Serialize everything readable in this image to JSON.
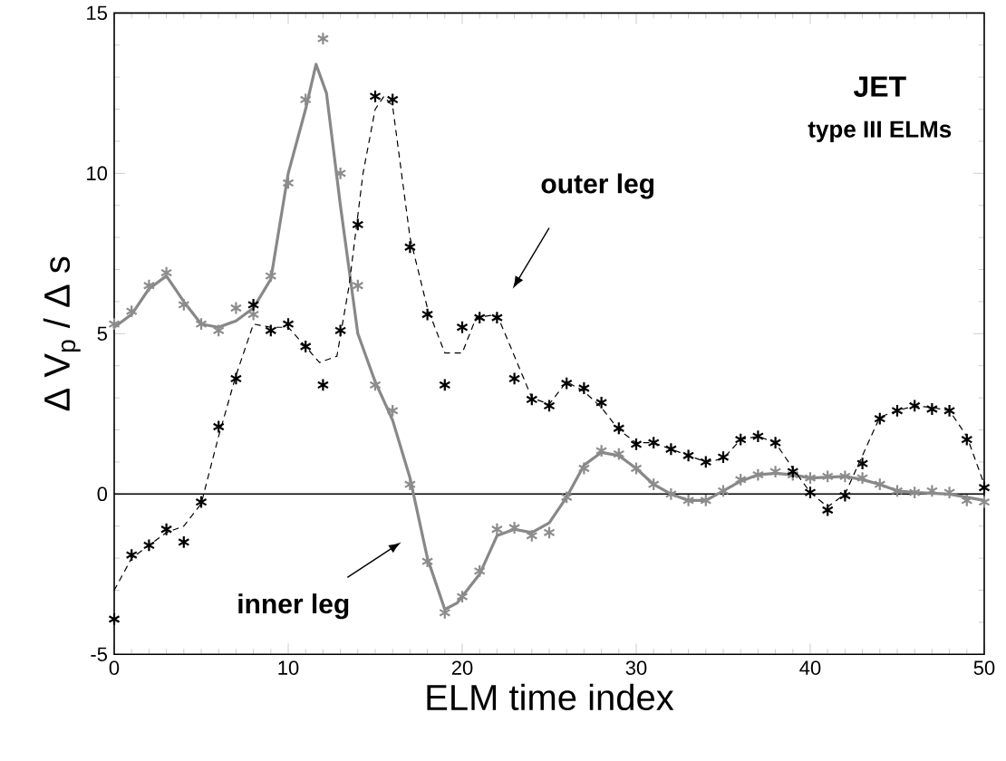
{
  "chart_data": {
    "type": "scatter",
    "title": "JET",
    "subtitle": "type III ELMs",
    "xlabel": "ELM time index",
    "ylabel": "Δ V$_{p}$ / Δ s",
    "xlim": [
      0,
      50
    ],
    "ylim": [
      -5,
      15
    ],
    "xticks": [
      0,
      10,
      20,
      30,
      40,
      50
    ],
    "yticks": [
      -5,
      0,
      5,
      10,
      15
    ],
    "grid": false,
    "ref_lines": [
      {
        "axis": "y",
        "value": 0,
        "color": "#000000"
      }
    ],
    "annotations": [
      "outer leg",
      "inner leg"
    ],
    "series": [
      {
        "type": "line",
        "color": "#888888",
        "line_style": "solid",
        "marker": "none",
        "x": [
          0,
          1,
          2,
          3,
          4,
          5,
          6,
          7,
          8,
          9,
          10,
          11,
          11.6,
          12.2,
          13,
          14,
          15,
          16,
          17,
          18,
          19,
          19.7,
          21,
          22,
          23,
          24,
          25,
          26,
          27,
          28,
          29,
          30,
          31,
          32,
          33,
          34,
          35,
          36,
          37,
          38,
          39,
          40,
          42,
          43,
          44,
          45,
          46,
          48,
          50
        ],
        "values": [
          5.2,
          5.6,
          6.4,
          6.8,
          6.0,
          5.3,
          5.2,
          5.4,
          5.8,
          6.7,
          10.0,
          12.0,
          13.4,
          12.5,
          9.0,
          5.0,
          3.5,
          2.3,
          0.5,
          -2.0,
          -3.6,
          -3.4,
          -2.5,
          -1.3,
          -1.1,
          -1.2,
          -0.9,
          -0.1,
          0.9,
          1.3,
          1.2,
          0.8,
          0.3,
          0.0,
          -0.2,
          -0.2,
          0.1,
          0.4,
          0.6,
          0.65,
          0.6,
          0.5,
          0.55,
          0.45,
          0.3,
          0.1,
          0.05,
          0.0,
          -0.2
        ]
      },
      {
        "type": "line",
        "color": "#000000",
        "line_style": "dashed",
        "marker": "none",
        "x": [
          0,
          1,
          2,
          3,
          4,
          5,
          6,
          7,
          8,
          9,
          10,
          11,
          11.8,
          12.8,
          13.5,
          14.3,
          15,
          15.5,
          16,
          17,
          18,
          19,
          20,
          20.8,
          22,
          23,
          24,
          25,
          26,
          27,
          28,
          29,
          30,
          31,
          32,
          33,
          34,
          35,
          36,
          37,
          38,
          39,
          40,
          41,
          42,
          43,
          44,
          45,
          46,
          47,
          48,
          49,
          50
        ],
        "values": [
          -3.0,
          -2.0,
          -1.6,
          -1.2,
          -1.0,
          -0.3,
          1.8,
          3.7,
          5.3,
          5.2,
          5.2,
          4.6,
          4.1,
          4.3,
          6.5,
          10.0,
          12.0,
          12.4,
          12.1,
          8.0,
          5.8,
          4.4,
          4.4,
          5.5,
          5.6,
          4.3,
          3.0,
          2.8,
          3.5,
          3.2,
          2.7,
          2.0,
          1.6,
          1.6,
          1.4,
          1.2,
          1.0,
          1.1,
          1.7,
          1.8,
          1.6,
          0.8,
          0.05,
          -0.4,
          0.0,
          1.2,
          2.4,
          2.6,
          2.75,
          2.7,
          2.6,
          1.8,
          0.3
        ]
      },
      {
        "color": "#8c8c8c",
        "marker": "cross",
        "x": [
          0,
          1,
          2,
          3,
          4,
          5,
          6,
          7,
          8,
          9,
          10,
          11,
          12,
          13,
          14,
          15,
          16,
          17,
          18,
          19,
          20,
          21,
          22,
          23,
          24,
          25,
          26,
          27,
          28,
          29,
          30,
          31,
          32,
          33,
          34,
          35,
          36,
          37,
          38,
          39,
          40,
          41,
          42,
          43,
          44,
          45,
          46,
          47,
          48,
          49,
          50
        ],
        "values": [
          5.3,
          5.7,
          6.5,
          6.9,
          5.9,
          5.3,
          5.1,
          5.8,
          5.6,
          6.8,
          9.7,
          12.3,
          14.2,
          10.0,
          6.5,
          3.4,
          2.6,
          0.3,
          -2.1,
          -3.7,
          -3.2,
          -2.4,
          -1.1,
          -1.05,
          -1.3,
          -1.2,
          -0.1,
          0.8,
          1.35,
          1.25,
          0.8,
          0.3,
          0.0,
          -0.2,
          -0.2,
          0.1,
          0.45,
          0.6,
          0.7,
          0.6,
          0.5,
          0.55,
          0.55,
          0.5,
          0.3,
          0.1,
          0.05,
          0.1,
          0.05,
          -0.2,
          -0.25
        ]
      },
      {
        "color": "#000000",
        "marker": "cross",
        "x": [
          0,
          1,
          2,
          3,
          4,
          5,
          6,
          7,
          8,
          9,
          10,
          11,
          12,
          13,
          14,
          15,
          16,
          17,
          18,
          19,
          20,
          21,
          22,
          23,
          24,
          25,
          26,
          27,
          28,
          29,
          30,
          31,
          32,
          33,
          34,
          35,
          36,
          37,
          38,
          39,
          40,
          41,
          42,
          43,
          44,
          45,
          46,
          47,
          48,
          49,
          50
        ],
        "values": [
          -3.9,
          -1.9,
          -1.6,
          -1.1,
          -1.5,
          -0.25,
          2.1,
          3.6,
          5.9,
          5.1,
          5.3,
          4.6,
          3.4,
          5.1,
          8.4,
          12.4,
          12.3,
          7.7,
          5.6,
          3.4,
          5.2,
          5.5,
          5.5,
          3.6,
          2.95,
          2.75,
          3.45,
          3.3,
          2.85,
          2.05,
          1.55,
          1.6,
          1.4,
          1.2,
          1.0,
          1.15,
          1.7,
          1.8,
          1.6,
          0.7,
          0.05,
          -0.5,
          -0.05,
          0.95,
          2.35,
          2.6,
          2.75,
          2.65,
          2.6,
          1.7,
          0.2
        ]
      }
    ]
  }
}
